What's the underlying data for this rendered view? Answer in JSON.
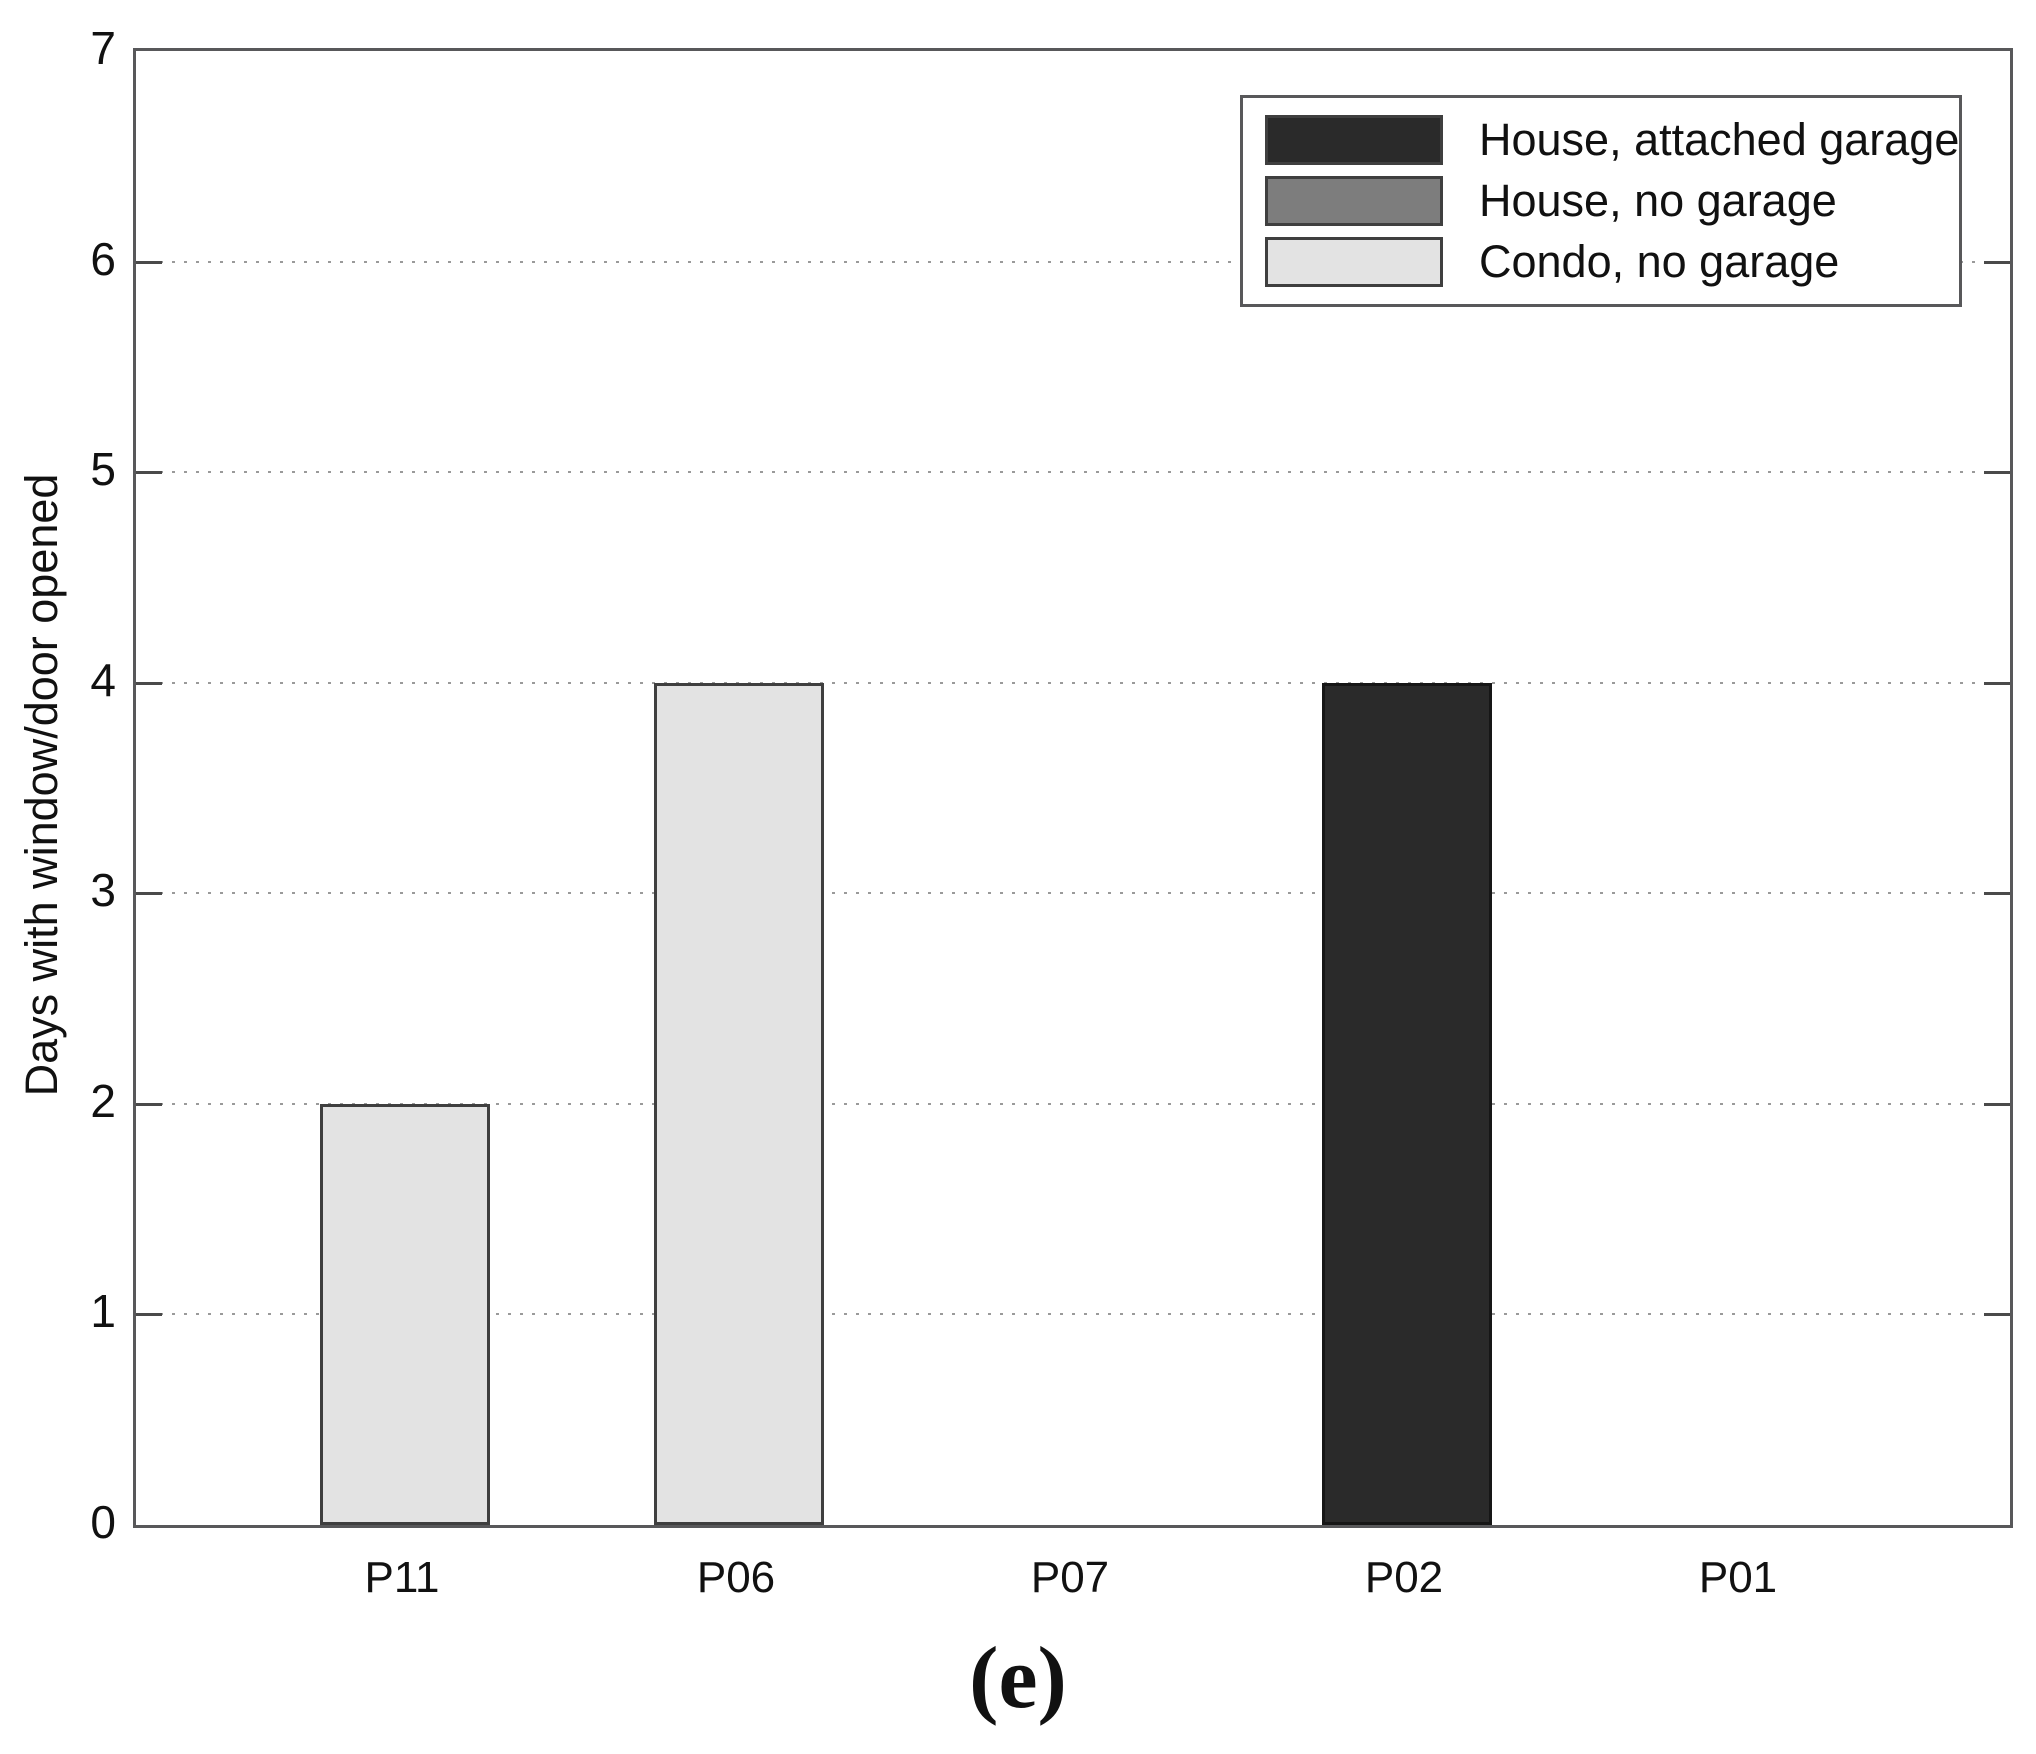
{
  "figure": {
    "caption": "(e)"
  },
  "chart_data": {
    "type": "bar",
    "title": "",
    "xlabel": "",
    "ylabel": "Days with window/door opened",
    "categories": [
      "P11",
      "P06",
      "P07",
      "P02",
      "P01"
    ],
    "values": [
      2,
      4,
      0,
      4,
      0
    ],
    "bar_series": [
      "Condo, no garage",
      "Condo, no garage",
      null,
      "House, attached garage",
      null
    ],
    "bar_colors": [
      "#e3e3e3",
      "#e3e3e3",
      null,
      "#2a2a2a",
      null
    ],
    "bar_border_colors": [
      "#3f3f3f",
      "#3f3f3f",
      null,
      "#161616",
      null
    ],
    "ylim": [
      0,
      7
    ],
    "yticks": [
      0,
      1,
      2,
      3,
      4,
      5,
      6,
      7
    ],
    "grid": "horizontal-dotted",
    "legend_position": "top-right",
    "legend": [
      {
        "label": "House, attached garage",
        "color": "#2a2a2a"
      },
      {
        "label": "House, no garage",
        "color": "#7d7d7d"
      },
      {
        "label": "Condo, no garage",
        "color": "#e3e3e3"
      }
    ]
  },
  "colors": {
    "axis": "#58585a",
    "gridline": "#9a9a9a",
    "text": "#111111",
    "background": "#ffffff"
  }
}
